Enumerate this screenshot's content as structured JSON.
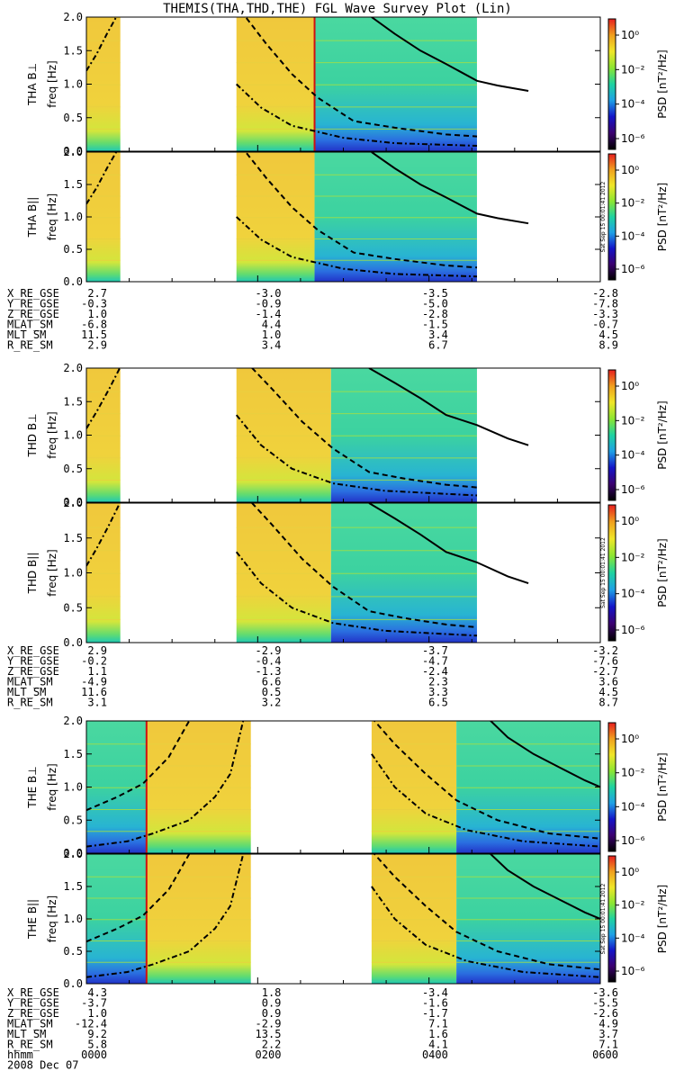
{
  "title": "THEMIS(THA,THD,THE) FGL Wave Survey Plot (Lin)",
  "colorbar": {
    "label": "PSD [nT²/Hz]",
    "ticks": [
      "10⁰",
      "10⁻²",
      "10⁻⁴",
      "10⁻⁶"
    ],
    "colors": [
      "#000000",
      "#3b0070",
      "#1414c8",
      "#1ea0e6",
      "#1ed2a0",
      "#8ce632",
      "#f0e628",
      "#f0a01e",
      "#e61e1e"
    ],
    "stamp": "Sat Sep 15 00:01:41 2012"
  },
  "chart_data": [
    {
      "probe": "THA",
      "panels": [
        {
          "ylabel": "THA B⊥",
          "unit": "freq [Hz]",
          "yticks": [
            "0.0",
            "0.5",
            "1.0",
            "1.5",
            "2.0"
          ],
          "ylim": [
            0,
            2
          ],
          "xlim": [
            "0000",
            "0600"
          ],
          "red_line_frac": 0.444
        },
        {
          "ylabel": "THA B||",
          "unit": "freq [Hz]",
          "yticks": [
            "0.0",
            "0.5",
            "1.0",
            "1.5",
            "2.0"
          ],
          "ylim": [
            0,
            2
          ],
          "xlim": [
            "0000",
            "0600"
          ],
          "red_line_frac": null
        }
      ],
      "segments": [
        {
          "start_frac": 0.0,
          "end_frac": 0.066,
          "style": "high"
        },
        {
          "start_frac": 0.292,
          "end_frac": 0.444,
          "style": "high"
        },
        {
          "start_frac": 0.444,
          "end_frac": 0.76,
          "style": "low"
        }
      ],
      "curves": {
        "solid": [
          [
            0.555,
            2.0
          ],
          [
            0.6,
            1.75
          ],
          [
            0.65,
            1.5
          ],
          [
            0.7,
            1.3
          ],
          [
            0.76,
            1.05
          ],
          [
            0.8,
            0.98
          ],
          [
            0.86,
            0.9
          ]
        ],
        "dashed": [
          [
            0.29,
            2.2
          ],
          [
            0.35,
            1.6
          ],
          [
            0.4,
            1.15
          ],
          [
            0.45,
            0.8
          ],
          [
            0.52,
            0.45
          ],
          [
            0.6,
            0.35
          ],
          [
            0.7,
            0.25
          ],
          [
            0.76,
            0.22
          ]
        ],
        "dashdot": [
          [
            0.292,
            1.0
          ],
          [
            0.34,
            0.65
          ],
          [
            0.4,
            0.38
          ],
          [
            0.5,
            0.2
          ],
          [
            0.6,
            0.12
          ],
          [
            0.76,
            0.08
          ]
        ],
        "rising_dashdot": [
          [
            0.0,
            1.2
          ],
          [
            0.02,
            1.45
          ],
          [
            0.04,
            1.75
          ],
          [
            0.058,
            2.0
          ]
        ]
      },
      "ephemeris": {
        "rows": [
          {
            "label": "X_RE_GSE",
            "values": [
              "2.7",
              "-3.0",
              "-3.5",
              "-2.8"
            ]
          },
          {
            "label": "Y_RE_GSE",
            "values": [
              "-0.3",
              "-0.9",
              "-5.0",
              "-7.8"
            ]
          },
          {
            "label": "Z_RE_GSE",
            "values": [
              "1.0",
              "-1.4",
              "-2.8",
              "-3.3"
            ]
          },
          {
            "label": "MLAT_SM",
            "values": [
              "-6.8",
              "4.4",
              "-1.5",
              "-0.7"
            ]
          },
          {
            "label": "MLT_SM",
            "values": [
              "11.5",
              "1.0",
              "3.4",
              "4.5"
            ]
          },
          {
            "label": "R_RE_SM",
            "values": [
              "2.9",
              "3.4",
              "6.7",
              "8.9"
            ]
          }
        ]
      }
    },
    {
      "probe": "THD",
      "panels": [
        {
          "ylabel": "THD B⊥",
          "unit": "freq [Hz]",
          "yticks": [
            "0.0",
            "0.5",
            "1.0",
            "1.5",
            "2.0"
          ],
          "ylim": [
            0,
            2
          ],
          "xlim": [
            "0000",
            "0600"
          ],
          "red_line_frac": null
        },
        {
          "ylabel": "THD B||",
          "unit": "freq [Hz]",
          "yticks": [
            "0.0",
            "0.5",
            "1.0",
            "1.5",
            "2.0"
          ],
          "ylim": [
            0,
            2
          ],
          "xlim": [
            "0000",
            "0600"
          ],
          "red_line_frac": null
        }
      ],
      "segments": [
        {
          "start_frac": 0.0,
          "end_frac": 0.066,
          "style": "high"
        },
        {
          "start_frac": 0.292,
          "end_frac": 0.476,
          "style": "high"
        },
        {
          "start_frac": 0.476,
          "end_frac": 0.76,
          "style": "low"
        }
      ],
      "curves": {
        "solid": [
          [
            0.55,
            2.0
          ],
          [
            0.6,
            1.78
          ],
          [
            0.65,
            1.55
          ],
          [
            0.7,
            1.3
          ],
          [
            0.76,
            1.15
          ],
          [
            0.82,
            0.95
          ],
          [
            0.86,
            0.85
          ]
        ],
        "dashed": [
          [
            0.31,
            2.1
          ],
          [
            0.36,
            1.7
          ],
          [
            0.42,
            1.2
          ],
          [
            0.48,
            0.8
          ],
          [
            0.55,
            0.45
          ],
          [
            0.62,
            0.35
          ],
          [
            0.7,
            0.26
          ],
          [
            0.76,
            0.22
          ]
        ],
        "dashdot": [
          [
            0.292,
            1.3
          ],
          [
            0.34,
            0.85
          ],
          [
            0.4,
            0.5
          ],
          [
            0.48,
            0.28
          ],
          [
            0.58,
            0.17
          ],
          [
            0.76,
            0.1
          ]
        ],
        "rising_dashdot": [
          [
            0.0,
            1.1
          ],
          [
            0.02,
            1.35
          ],
          [
            0.045,
            1.7
          ],
          [
            0.065,
            2.0
          ]
        ]
      },
      "ephemeris": {
        "rows": [
          {
            "label": "X_RE_GSE",
            "values": [
              "2.9",
              "-2.9",
              "-3.7",
              "-3.2"
            ]
          },
          {
            "label": "Y_RE_GSE",
            "values": [
              "-0.2",
              "-0.4",
              "-4.7",
              "-7.6"
            ]
          },
          {
            "label": "Z_RE_GSE",
            "values": [
              "1.1",
              "-1.3",
              "-2.4",
              "-2.7"
            ]
          },
          {
            "label": "MLAT_SM",
            "values": [
              "-4.9",
              "6.6",
              "2.3",
              "3.6"
            ]
          },
          {
            "label": "MLT_SM",
            "values": [
              "11.6",
              "0.5",
              "3.3",
              "4.5"
            ]
          },
          {
            "label": "R_RE_SM",
            "values": [
              "3.1",
              "3.2",
              "6.5",
              "8.7"
            ]
          }
        ]
      }
    },
    {
      "probe": "THE",
      "panels": [
        {
          "ylabel": "THE B⊥",
          "unit": "freq [Hz]",
          "yticks": [
            "0.0",
            "0.5",
            "1.0",
            "1.5",
            "2.0"
          ],
          "ylim": [
            0,
            2
          ],
          "xlim": [
            "0000",
            "0600"
          ],
          "red_line_frac": 0.117
        },
        {
          "ylabel": "THE B||",
          "unit": "freq [Hz]",
          "yticks": [
            "0.0",
            "0.5",
            "1.0",
            "1.5",
            "2.0"
          ],
          "ylim": [
            0,
            2
          ],
          "xlim": [
            "0000",
            "0600"
          ],
          "red_line_frac": 0.117
        }
      ],
      "segments": [
        {
          "start_frac": 0.0,
          "end_frac": 0.117,
          "style": "low"
        },
        {
          "start_frac": 0.117,
          "end_frac": 0.32,
          "style": "high"
        },
        {
          "start_frac": 0.555,
          "end_frac": 0.72,
          "style": "high"
        },
        {
          "start_frac": 0.72,
          "end_frac": 1.0,
          "style": "low"
        }
      ],
      "curves": {
        "solid": [
          [
            0.78,
            2.05
          ],
          [
            0.82,
            1.75
          ],
          [
            0.87,
            1.5
          ],
          [
            0.92,
            1.3
          ],
          [
            0.97,
            1.1
          ],
          [
            1.0,
            1.0
          ]
        ],
        "dashed": [
          [
            0.0,
            0.65
          ],
          [
            0.06,
            0.85
          ],
          [
            0.11,
            1.05
          ],
          [
            0.16,
            1.45
          ],
          [
            0.2,
            2.0
          ]
        ],
        "dashdot": [
          [
            0.0,
            0.1
          ],
          [
            0.08,
            0.18
          ],
          [
            0.13,
            0.3
          ],
          [
            0.2,
            0.5
          ],
          [
            0.25,
            0.85
          ],
          [
            0.28,
            1.2
          ],
          [
            0.305,
            2.0
          ]
        ],
        "dashed2": [
          [
            0.555,
            2.05
          ],
          [
            0.6,
            1.65
          ],
          [
            0.66,
            1.2
          ],
          [
            0.72,
            0.8
          ],
          [
            0.8,
            0.5
          ],
          [
            0.9,
            0.3
          ],
          [
            1.0,
            0.22
          ]
        ],
        "dashdot2": [
          [
            0.555,
            1.5
          ],
          [
            0.6,
            1.0
          ],
          [
            0.66,
            0.6
          ],
          [
            0.74,
            0.35
          ],
          [
            0.85,
            0.18
          ],
          [
            1.0,
            0.1
          ]
        ]
      },
      "ephemeris": {
        "rows": [
          {
            "label": "X_RE_GSE",
            "values": [
              "4.3",
              "1.8",
              "-3.4",
              "-3.6"
            ]
          },
          {
            "label": "Y_RE_GSE",
            "values": [
              "-3.7",
              "0.9",
              "-1.6",
              "-5.5"
            ]
          },
          {
            "label": "Z_RE_GSE",
            "values": [
              "1.0",
              "0.9",
              "-1.7",
              "-2.6"
            ]
          },
          {
            "label": "MLAT_SM",
            "values": [
              "-12.4",
              "-2.9",
              "7.1",
              "4.9"
            ]
          },
          {
            "label": "MLT_SM",
            "values": [
              "9.2",
              "13.5",
              "1.6",
              "3.7"
            ]
          },
          {
            "label": "R_RE_SM",
            "values": [
              "5.8",
              "2.2",
              "4.1",
              "7.1"
            ]
          }
        ],
        "time_row": {
          "label": "hhmm",
          "values": [
            "0000",
            "0200",
            "0400",
            "0600"
          ]
        },
        "date": "2008 Dec 07"
      }
    }
  ]
}
